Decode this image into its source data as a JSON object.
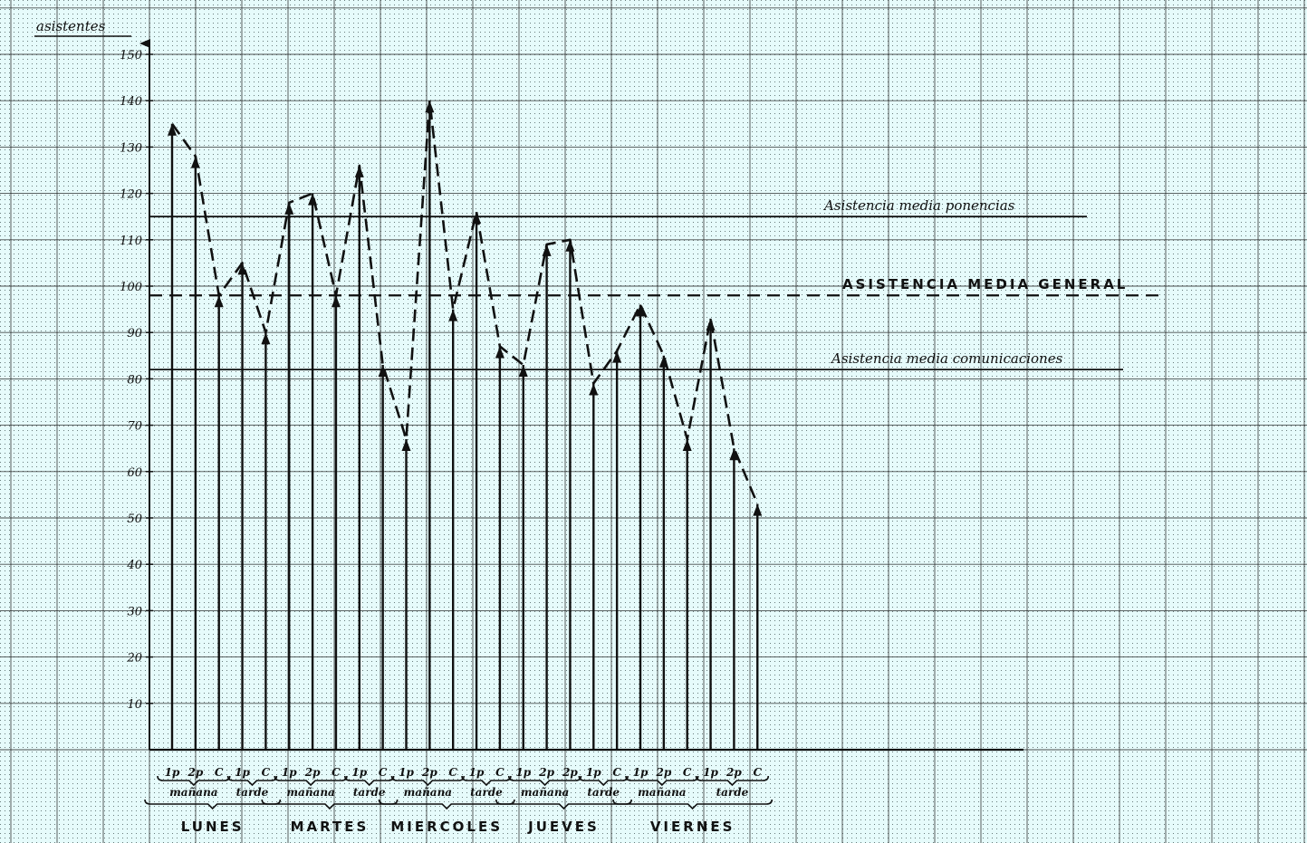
{
  "chart_data": {
    "type": "line",
    "ylabel": "asistentes",
    "ylim": [
      0,
      150
    ],
    "yticks": [
      10,
      20,
      30,
      40,
      50,
      60,
      70,
      80,
      90,
      100,
      110,
      120,
      130,
      140,
      150
    ],
    "grid": true,
    "sessions": [
      {
        "label": "1p",
        "value": 135
      },
      {
        "label": "2p",
        "value": 128
      },
      {
        "label": "C",
        "value": 98
      },
      {
        "label": "1p",
        "value": 105
      },
      {
        "label": "C",
        "value": 90
      },
      {
        "label": "1p",
        "value": 118
      },
      {
        "label": "2p",
        "value": 120
      },
      {
        "label": "C",
        "value": 98
      },
      {
        "label": "1p",
        "value": 126
      },
      {
        "label": "C",
        "value": 83
      },
      {
        "label": "1p",
        "value": 67
      },
      {
        "label": "2p",
        "value": 140
      },
      {
        "label": "C",
        "value": 95
      },
      {
        "label": "1p",
        "value": 116
      },
      {
        "label": "C",
        "value": 87
      },
      {
        "label": "1p",
        "value": 83
      },
      {
        "label": "2p",
        "value": 109
      },
      {
        "label": "2p",
        "value": 110
      },
      {
        "label": "1p",
        "value": 79
      },
      {
        "label": "C",
        "value": 86
      },
      {
        "label": "1p",
        "value": 96
      },
      {
        "label": "2p",
        "value": 85
      },
      {
        "label": "C",
        "value": 67
      },
      {
        "label": "1p",
        "value": 93
      },
      {
        "label": "2p",
        "value": 65
      },
      {
        "label": "C",
        "value": 53
      }
    ],
    "periods": [
      {
        "label": "mañana",
        "from": 0,
        "to": 2
      },
      {
        "label": "tarde",
        "from": 3,
        "to": 4
      },
      {
        "label": "mañana",
        "from": 5,
        "to": 7
      },
      {
        "label": "tarde",
        "from": 8,
        "to": 9
      },
      {
        "label": "mañana",
        "from": 10,
        "to": 12
      },
      {
        "label": "tarde",
        "from": 13,
        "to": 14
      },
      {
        "label": "mañana",
        "from": 15,
        "to": 17
      },
      {
        "label": "tarde",
        "from": 18,
        "to": 19
      },
      {
        "label": "mañana",
        "from": 20,
        "to": 22
      },
      {
        "label": "tarde",
        "from": 23,
        "to": 25
      }
    ],
    "days": [
      {
        "label": "LUNES",
        "from": 0,
        "to": 4
      },
      {
        "label": "MARTES",
        "from": 5,
        "to": 9
      },
      {
        "label": "MIERCOLES",
        "from": 10,
        "to": 14
      },
      {
        "label": "JUEVES",
        "from": 15,
        "to": 19
      },
      {
        "label": "VIERNES",
        "from": 20,
        "to": 25
      }
    ],
    "reference_lines": [
      {
        "label": "Asistencia media ponencias",
        "value": 115,
        "style": "solid"
      },
      {
        "label": "ASISTENCIA MEDIA GENERAL",
        "value": 98,
        "style": "dashed"
      },
      {
        "label": "Asistencia media comunicaciones",
        "value": 82,
        "style": "solid"
      }
    ]
  },
  "colors": {
    "paper": "#e6fbfb",
    "ink": "#111111",
    "grid_minor": "#5a6c6c",
    "grid_major": "#222222"
  }
}
